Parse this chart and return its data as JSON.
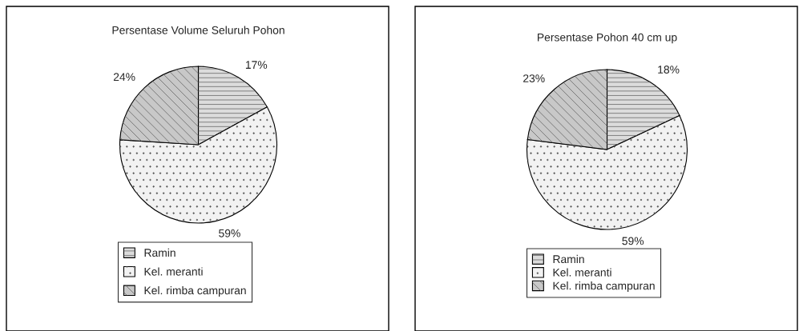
{
  "chart_data": [
    {
      "type": "pie",
      "title": "Persentase Volume Seluruh Pohon",
      "categories": [
        "Ramin",
        "Kel. meranti",
        "Kel. rimba campuran"
      ],
      "values": [
        17,
        59,
        24
      ],
      "value_labels": [
        "17%",
        "59%",
        "24%"
      ],
      "colors": [
        "#dcdcdc",
        "#f2f2f2",
        "#c8c8c8"
      ],
      "legend": "bottom"
    },
    {
      "type": "pie",
      "title": "Persentase Pohon 40 cm up",
      "categories": [
        "Ramin",
        "Kel. meranti",
        "Kel. rimba campuran"
      ],
      "values": [
        18,
        59,
        23
      ],
      "value_labels": [
        "18%",
        "59%",
        "23%"
      ],
      "colors": [
        "#dcdcdc",
        "#f2f2f2",
        "#c8c8c8"
      ],
      "legend": "bottom"
    }
  ]
}
